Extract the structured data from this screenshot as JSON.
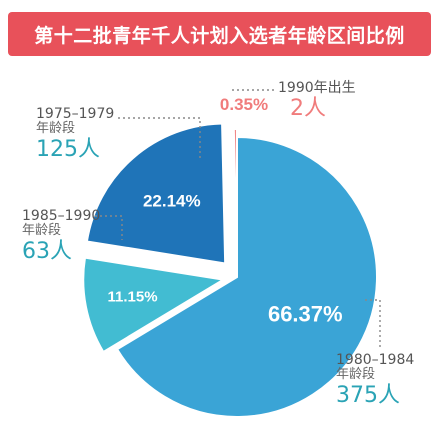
{
  "title": "第十二批青年千人计划入选者年龄区间比例",
  "colors": {
    "title_bg": "#e8515a",
    "gray_label": "#555555",
    "pink_label": "#f07c7c",
    "teal_label": "#2aa3b5",
    "pie_edge": "#ffffff"
  },
  "chart_data": {
    "type": "pie",
    "title": "第十二批青年千人计划入选者年龄区间比例",
    "slices": [
      {
        "key": "s1980",
        "range": "1980–1984",
        "unit": "年龄段",
        "count": "375人",
        "percent": 66.37,
        "percent_label": "66.37%",
        "color": "#3aa4d6",
        "count_color": "#2aa3b5"
      },
      {
        "key": "s1985",
        "range": "1985–1990",
        "unit": "年龄段",
        "count": "63人",
        "percent": 11.15,
        "percent_label": "11.15%",
        "color": "#42bcd2",
        "count_color": "#2aa3b5"
      },
      {
        "key": "s1975",
        "range": "1975–1979",
        "unit": "年龄段",
        "count": "125人",
        "percent": 22.14,
        "percent_label": "22.14%",
        "color": "#1f74b8",
        "count_color": "#2aa3b5"
      },
      {
        "key": "s1990",
        "range": "1990年出生",
        "unit": "",
        "count": "2人",
        "percent": 0.35,
        "percent_label": "0.35%",
        "color": "#f07c7c",
        "count_color": "#f07c7c"
      }
    ]
  }
}
